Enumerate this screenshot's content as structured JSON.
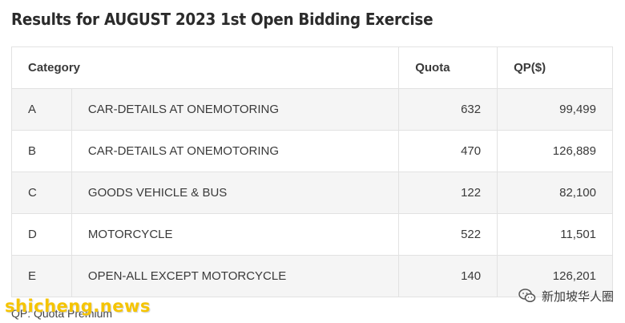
{
  "title": "Results for AUGUST 2023 1st Open Bidding Exercise",
  "table": {
    "headers": {
      "category": "Category",
      "quota": "Quota",
      "qp": "QP($)"
    },
    "rows": [
      {
        "cat": "A",
        "desc": "CAR-DETAILS AT ONEMOTORING",
        "quota": "632",
        "qp": "99,499"
      },
      {
        "cat": "B",
        "desc": "CAR-DETAILS AT ONEMOTORING",
        "quota": "470",
        "qp": "126,889"
      },
      {
        "cat": "C",
        "desc": "GOODS VEHICLE & BUS",
        "quota": "122",
        "qp": "82,100"
      },
      {
        "cat": "D",
        "desc": "MOTORCYCLE",
        "quota": "522",
        "qp": "11,501"
      },
      {
        "cat": "E",
        "desc": "OPEN-ALL EXCEPT MOTORCYCLE",
        "quota": "140",
        "qp": "126,201"
      }
    ]
  },
  "footnote": "QP: Quota Premium",
  "watermark": "shicheng.news",
  "wechat": {
    "icon": "wechat-icon",
    "label": "新加坡华人圈"
  }
}
